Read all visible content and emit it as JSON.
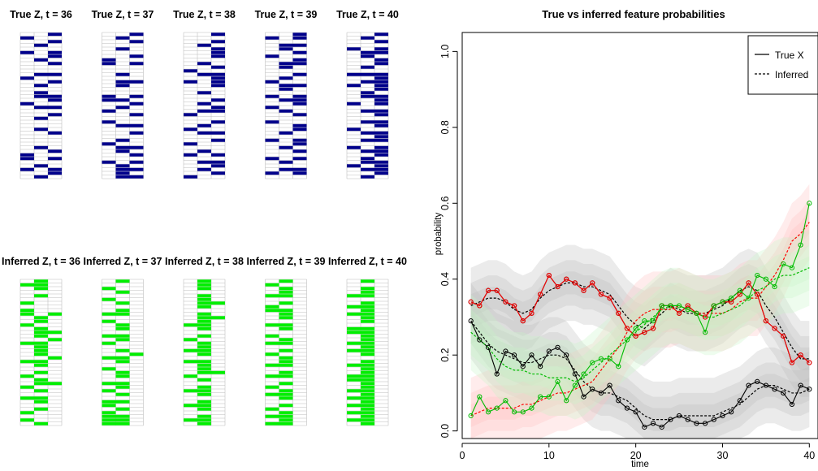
{
  "chart_data": [
    {
      "type": "heatmap",
      "id": "true-z",
      "titles": [
        "True Z, t = 36",
        "True Z, t = 37",
        "True Z, t = 38",
        "True Z, t = 39",
        "True Z, t = 40"
      ],
      "rows": 40,
      "cols": 3,
      "on_color": "#00008B",
      "off_color": "#FFFFFF",
      "grid_color": "#BEBEBE",
      "panels": [
        [
          "001",
          "100",
          "001",
          "010",
          "000",
          "101",
          "001",
          "010",
          "001",
          "000",
          "000",
          "011",
          "100",
          "001",
          "010",
          "000",
          "010",
          "011",
          "001",
          "100",
          "011",
          "000",
          "001",
          "010",
          "000",
          "000",
          "010",
          "001",
          "000",
          "000",
          "000",
          "010",
          "001",
          "100",
          "101",
          "000",
          "010",
          "101",
          "001",
          "010"
        ],
        [
          "001",
          "010",
          "001",
          "000",
          "010",
          "000",
          "001",
          "100",
          "101",
          "000",
          "000",
          "010",
          "000",
          "011",
          "010",
          "000",
          "000",
          "101",
          "110",
          "001",
          "010",
          "100",
          "001",
          "000",
          "100",
          "011",
          "000",
          "001",
          "000",
          "010",
          "100",
          "011",
          "010",
          "001",
          "000",
          "101",
          "010",
          "011",
          "010",
          "011"
        ],
        [
          "001",
          "000",
          "001",
          "010",
          "001",
          "001",
          "001",
          "000",
          "010",
          "001",
          "100",
          "011",
          "001",
          "101",
          "001",
          "000",
          "010",
          "000",
          "001",
          "010",
          "001",
          "011",
          "100",
          "000",
          "001",
          "010",
          "100",
          "011",
          "000",
          "001",
          "100",
          "000",
          "010",
          "101",
          "000",
          "011",
          "001",
          "010",
          "001",
          "100"
        ],
        [
          "001",
          "101",
          "000",
          "011",
          "010",
          "001",
          "100",
          "001",
          "011",
          "010",
          "000",
          "001",
          "010",
          "100",
          "011",
          "010",
          "000",
          "101",
          "011",
          "001",
          "100",
          "010",
          "001",
          "000",
          "100",
          "001",
          "001",
          "010",
          "000",
          "101",
          "001",
          "010",
          "001",
          "000",
          "101",
          "010",
          "000",
          "011",
          "101",
          "000"
        ],
        [
          "001",
          "010",
          "001",
          "000",
          "101",
          "011",
          "010",
          "001",
          "001",
          "010",
          "000",
          "111",
          "001",
          "011",
          "101",
          "001",
          "010",
          "011",
          "001",
          "101",
          "000",
          "011",
          "001",
          "000",
          "011",
          "001",
          "100",
          "011",
          "001",
          "011",
          "000",
          "101",
          "011",
          "001",
          "010",
          "011",
          "101",
          "011",
          "001",
          "010"
        ]
      ]
    },
    {
      "type": "heatmap",
      "id": "inferred-z",
      "titles": [
        "Inferred Z, t = 36",
        "Inferred Z, t = 37",
        "Inferred Z, t = 38",
        "Inferred Z, t = 39",
        "Inferred Z, t = 40"
      ],
      "rows": 40,
      "cols": 3,
      "on_color": "#00EE00",
      "off_color": "#FFFFFF",
      "grid_color": "#BEBEBE",
      "panels": [
        [
          "010",
          "110",
          "010",
          "000",
          "010",
          "000",
          "100",
          "000",
          "100",
          "101",
          "010",
          "010",
          "100",
          "010",
          "011",
          "010",
          "001",
          "110",
          "010",
          "010",
          "010",
          "001",
          "110",
          "010",
          "000",
          "010",
          "100",
          "010",
          "011",
          "100",
          "010",
          "000",
          "110",
          "010",
          "000",
          "010",
          "100",
          "000",
          "100",
          "010"
        ],
        [
          "010",
          "000",
          "100",
          "010",
          "000",
          "100",
          "010",
          "000",
          "010",
          "110",
          "000",
          "100",
          "010",
          "010",
          "000",
          "110",
          "010",
          "100",
          "000",
          "010",
          "001",
          "110",
          "010",
          "000",
          "100",
          "010",
          "010",
          "000",
          "110",
          "010",
          "100",
          "010",
          "000",
          "110",
          "100",
          "010",
          "100",
          "110",
          "110",
          "110"
        ],
        [
          "010",
          "010",
          "010",
          "000",
          "010",
          "010",
          "011",
          "010",
          "000",
          "010",
          "011",
          "010",
          "110",
          "010",
          "000",
          "010",
          "100",
          "010",
          "010",
          "110",
          "010",
          "000",
          "110",
          "010",
          "010",
          "011",
          "100",
          "010",
          "000",
          "010",
          "110",
          "010",
          "000",
          "010",
          "110",
          "010",
          "000",
          "010",
          "110",
          "010"
        ],
        [
          "010",
          "100",
          "010",
          "010",
          "110",
          "000",
          "010",
          "100",
          "110",
          "010",
          "010",
          "000",
          "110",
          "010",
          "000",
          "100",
          "010",
          "110",
          "000",
          "010",
          "100",
          "010",
          "010",
          "110",
          "000",
          "010",
          "110",
          "000",
          "010",
          "100",
          "010",
          "110",
          "010",
          "000",
          "010",
          "100",
          "010",
          "110",
          "010",
          "110"
        ],
        [
          "010",
          "000",
          "010",
          "010",
          "110",
          "000",
          "010",
          "110",
          "010",
          "110",
          "010",
          "010",
          "000",
          "110",
          "110",
          "010",
          "010",
          "110",
          "010",
          "110",
          "010",
          "000",
          "010",
          "110",
          "010",
          "010",
          "110",
          "110",
          "010",
          "010",
          "110",
          "010",
          "110",
          "010",
          "110",
          "010",
          "110",
          "010",
          "110",
          "010"
        ]
      ]
    },
    {
      "type": "line",
      "id": "feature-probabilities",
      "title": "True vs inferred feature probabilities",
      "xlabel": "time",
      "ylabel": "probability",
      "xlim": [
        0,
        41
      ],
      "ylim": [
        -0.02,
        1.05
      ],
      "xticks": [
        0,
        10,
        20,
        30,
        40
      ],
      "yticks": [
        0.0,
        0.2,
        0.4,
        0.6,
        0.8,
        1.0
      ],
      "ytick_labels": [
        "0.0",
        "0.2",
        "0.4",
        "0.6",
        "0.8",
        "1.0"
      ],
      "legend": {
        "position": "top-right",
        "entries": [
          "True X",
          "Inferred"
        ]
      },
      "x": [
        1,
        2,
        3,
        4,
        5,
        6,
        7,
        8,
        9,
        10,
        11,
        12,
        13,
        14,
        15,
        16,
        17,
        18,
        19,
        20,
        21,
        22,
        23,
        24,
        25,
        26,
        27,
        28,
        29,
        30,
        31,
        32,
        33,
        34,
        35,
        36,
        37,
        38,
        39,
        40
      ],
      "series": [
        {
          "color": "#000000",
          "band_color": "#BEBEBE",
          "true": [
            0.29,
            0.24,
            0.22,
            0.15,
            0.21,
            0.2,
            0.17,
            0.2,
            0.17,
            0.21,
            0.22,
            0.2,
            0.15,
            0.09,
            0.11,
            0.1,
            0.12,
            0.08,
            0.06,
            0.05,
            0.01,
            0.02,
            0.01,
            0.03,
            0.04,
            0.03,
            0.02,
            0.02,
            0.03,
            0.04,
            0.05,
            0.08,
            0.12,
            0.13,
            0.12,
            0.11,
            0.1,
            0.07,
            0.12,
            0.11
          ],
          "inferred": [
            0.29,
            0.26,
            0.23,
            0.21,
            0.2,
            0.19,
            0.18,
            0.18,
            0.19,
            0.2,
            0.2,
            0.19,
            0.16,
            0.13,
            0.11,
            0.1,
            0.1,
            0.09,
            0.08,
            0.06,
            0.04,
            0.03,
            0.03,
            0.03,
            0.04,
            0.04,
            0.04,
            0.04,
            0.04,
            0.05,
            0.06,
            0.07,
            0.09,
            0.11,
            0.12,
            0.12,
            0.11,
            0.1,
            0.1,
            0.11
          ]
        },
        {
          "color": "#000000",
          "band_color": "#BEBEBE",
          "true": [
            0.34,
            0.33,
            0.37,
            0.37,
            0.34,
            0.33,
            0.29,
            0.31,
            0.36,
            0.41,
            0.38,
            0.4,
            0.39,
            0.37,
            0.39,
            0.36,
            0.35,
            0.31,
            0.27,
            0.25,
            0.26,
            0.27,
            0.33,
            0.33,
            0.31,
            0.33,
            0.31,
            0.3,
            0.33,
            0.34,
            0.34,
            0.36,
            0.39,
            0.36,
            0.29,
            0.27,
            0.25,
            0.18,
            0.2,
            0.18
          ],
          "inferred": [
            0.33,
            0.34,
            0.35,
            0.35,
            0.34,
            0.32,
            0.31,
            0.32,
            0.35,
            0.37,
            0.38,
            0.39,
            0.39,
            0.38,
            0.38,
            0.37,
            0.36,
            0.33,
            0.3,
            0.28,
            0.27,
            0.29,
            0.31,
            0.33,
            0.32,
            0.31,
            0.31,
            0.31,
            0.32,
            0.33,
            0.35,
            0.37,
            0.38,
            0.37,
            0.33,
            0.3,
            0.26,
            0.22,
            0.19,
            0.19
          ]
        },
        {
          "color": "#FF0000",
          "band_color": "#FFC0C0",
          "true": [
            0.34,
            0.33,
            0.37,
            0.37,
            0.34,
            0.33,
            0.29,
            0.31,
            0.36,
            0.41,
            0.38,
            0.4,
            0.39,
            0.37,
            0.39,
            0.36,
            0.35,
            0.31,
            0.27,
            0.25,
            0.26,
            0.27,
            0.33,
            0.33,
            0.31,
            0.33,
            0.31,
            0.3,
            0.33,
            0.34,
            0.34,
            0.36,
            0.39,
            0.36,
            0.29,
            0.27,
            0.25,
            0.18,
            0.2,
            0.18
          ],
          "inferred": [
            0.04,
            0.05,
            0.06,
            0.06,
            0.06,
            0.06,
            0.07,
            0.07,
            0.08,
            0.09,
            0.1,
            0.1,
            0.11,
            0.12,
            0.13,
            0.16,
            0.19,
            0.22,
            0.26,
            0.29,
            0.31,
            0.32,
            0.32,
            0.32,
            0.33,
            0.32,
            0.31,
            0.31,
            0.31,
            0.31,
            0.32,
            0.34,
            0.35,
            0.35,
            0.38,
            0.41,
            0.45,
            0.5,
            0.52,
            0.55
          ]
        },
        {
          "color": "#00BB00",
          "band_color": "#C8F5C8",
          "true": [
            0.04,
            0.09,
            0.05,
            0.06,
            0.08,
            0.05,
            0.05,
            0.06,
            0.09,
            0.09,
            0.13,
            0.08,
            0.12,
            0.15,
            0.18,
            0.19,
            0.19,
            0.17,
            0.24,
            0.27,
            0.29,
            0.29,
            0.33,
            0.33,
            0.33,
            0.32,
            0.31,
            0.26,
            0.33,
            0.34,
            0.35,
            0.37,
            0.35,
            0.41,
            0.4,
            0.38,
            0.44,
            0.43,
            0.49,
            0.6
          ],
          "inferred": [
            0.26,
            0.24,
            0.22,
            0.19,
            0.17,
            0.16,
            0.16,
            0.15,
            0.15,
            0.14,
            0.14,
            0.14,
            0.13,
            0.14,
            0.16,
            0.18,
            0.2,
            0.22,
            0.24,
            0.26,
            0.28,
            0.3,
            0.32,
            0.33,
            0.33,
            0.32,
            0.31,
            0.3,
            0.3,
            0.31,
            0.32,
            0.33,
            0.35,
            0.37,
            0.38,
            0.4,
            0.41,
            0.41,
            0.42,
            0.43
          ]
        }
      ]
    }
  ]
}
